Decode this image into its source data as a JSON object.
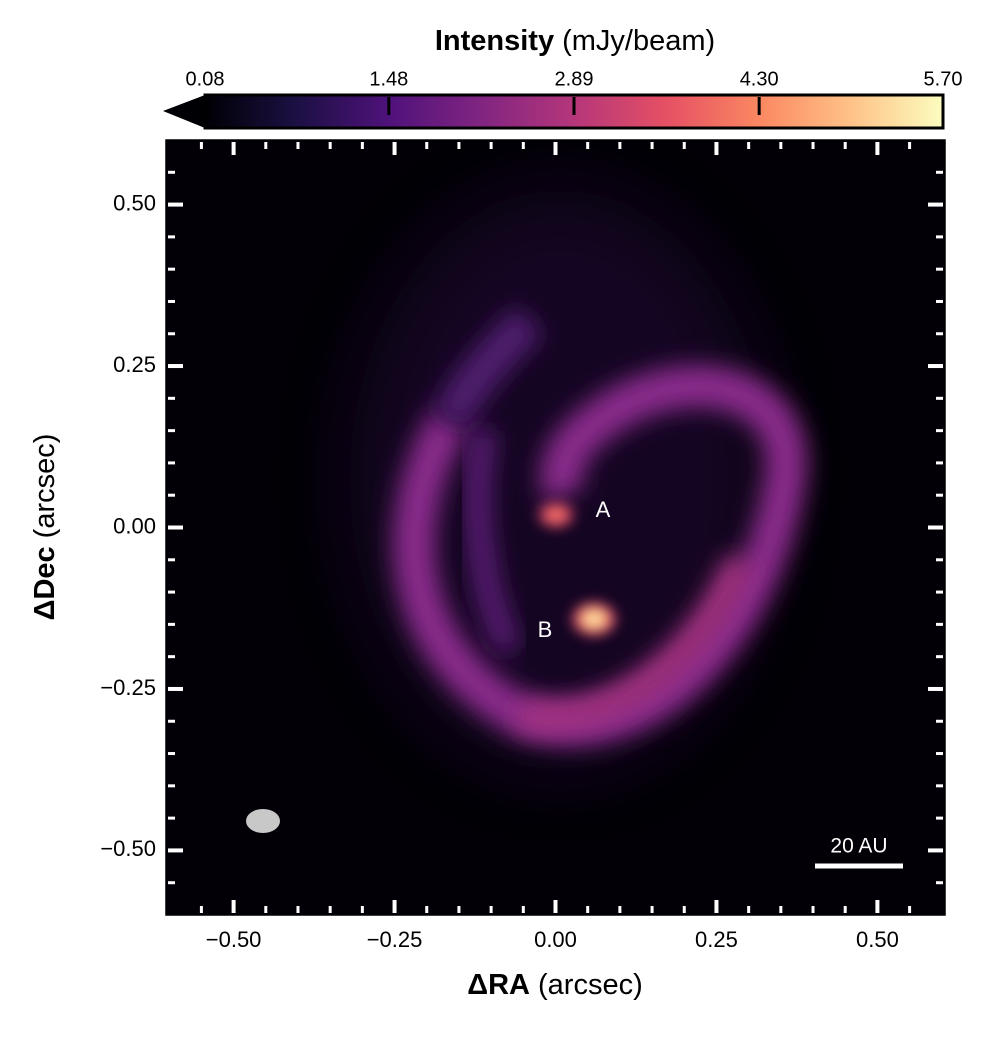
{
  "chart_data": {
    "type": "image",
    "colorbar_label": "Intensity",
    "colorbar_unit": "(mJy/beam)",
    "clim": [
      0.08,
      5.7
    ],
    "cticks": [
      0.08,
      1.48,
      2.89,
      {
        "value": 4.3,
        "label": "4.30"
      },
      {
        "value": 5.7,
        "label": "5.70"
      }
    ],
    "colormap": [
      "#000004",
      "#1c1044",
      "#4f127b",
      "#812581",
      "#b5367a",
      "#e55064",
      "#fb8761",
      "#fec287",
      "#fcfdbf"
    ],
    "xlabel": "ΔRA",
    "xunit": "(arcsec)",
    "ylabel": "ΔDec",
    "yunit": "(arcsec)",
    "xlim": [
      -0.605,
      0.605
    ],
    "ylim": [
      -0.6,
      0.6
    ],
    "xticks": [
      {
        "value": -0.5,
        "label": "−0.50"
      },
      {
        "value": -0.25,
        "label": "−0.25"
      },
      {
        "value": 0,
        "label": "0.00"
      },
      {
        "value": 0.25,
        "label": "0.25"
      },
      {
        "value": 0.5,
        "label": "0.50"
      }
    ],
    "yticks": [
      {
        "value": -0.5,
        "label": "−0.50"
      },
      {
        "value": -0.25,
        "label": "−0.25"
      },
      {
        "value": 0,
        "label": "0.00"
      },
      {
        "value": 0.25,
        "label": "0.25"
      },
      {
        "value": 0.5,
        "label": "0.50"
      }
    ],
    "minorticks": [
      -0.55,
      -0.45,
      -0.4,
      -0.35,
      -0.3,
      -0.2,
      -0.15,
      -0.1,
      -0.05,
      0.05,
      0.1,
      0.15,
      0.2,
      0.3,
      0.35,
      0.4,
      0.45,
      0.55
    ],
    "annotations": [
      "A",
      "B"
    ],
    "scalebar_label": "20 AU"
  }
}
